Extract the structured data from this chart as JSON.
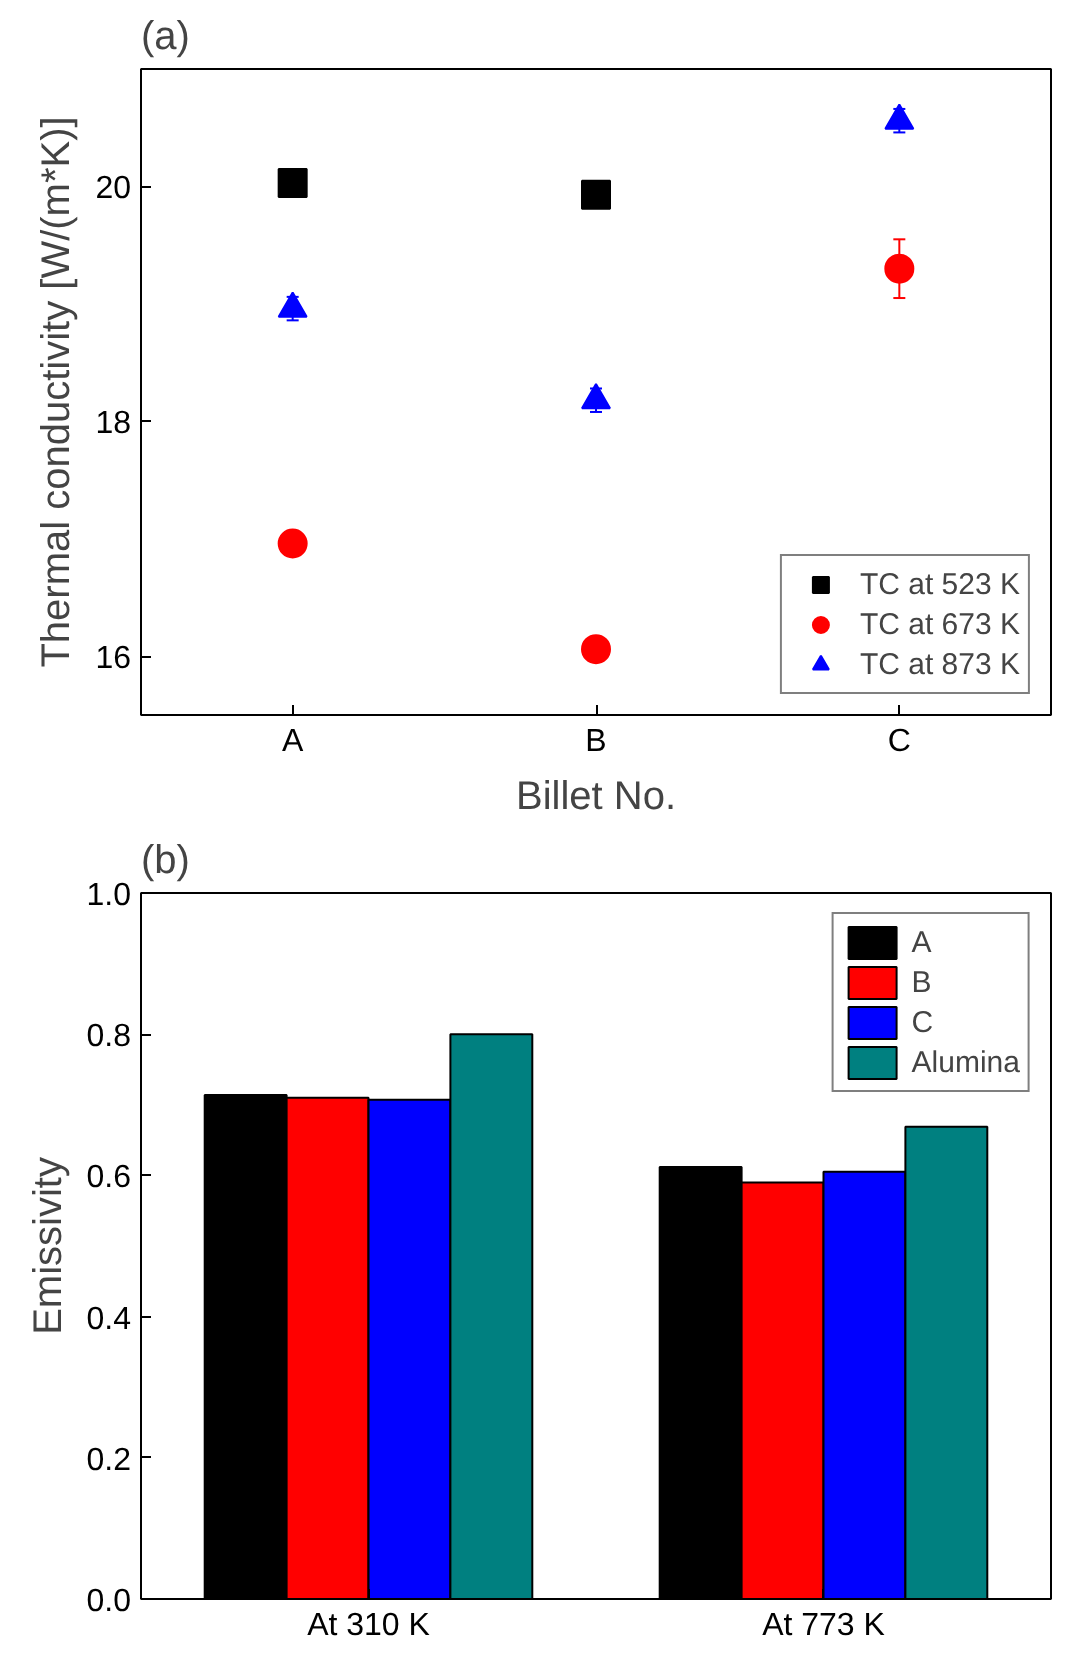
{
  "chart_data": [
    {
      "type": "scatter",
      "title": "(a)",
      "xlabel": "Billet No.",
      "ylabel": "Thermal conductivity [W/(m*K)]",
      "categories": [
        "A",
        "B",
        "C"
      ],
      "ylim": [
        15.5,
        21
      ],
      "yticks": [
        16,
        18,
        20
      ],
      "legend": "bottom right",
      "grid": false,
      "series": [
        {
          "name": "TC at 523 K",
          "color": "#000000",
          "marker": "square",
          "values": [
            20.03,
            19.93,
            null
          ]
        },
        {
          "name": "TC at 673 K",
          "color": "#ff0000",
          "marker": "circle",
          "values": [
            16.96,
            16.06,
            19.3
          ],
          "errors": [
            null,
            null,
            0.25
          ]
        },
        {
          "name": "TC at 873 K",
          "color": "#0000ff",
          "marker": "triangle",
          "values": [
            18.96,
            18.18,
            20.56
          ],
          "errors": [
            0.1,
            0.1,
            0.1
          ]
        }
      ]
    },
    {
      "type": "bar",
      "title": "(b)",
      "ylabel": "Emissivity",
      "categories": [
        "At 310 K",
        "At 773 K"
      ],
      "ylim": [
        0,
        1.0
      ],
      "yticks": [
        {
          "value": 0,
          "label": "0.0"
        },
        0.2,
        0.4,
        0.6,
        0.8,
        {
          "value": 1,
          "label": "1.0"
        }
      ],
      "legend": "top right",
      "grid": false,
      "series": [
        {
          "name": "A",
          "color": "#000000",
          "values": [
            0.714,
            0.612
          ]
        },
        {
          "name": "B",
          "color": "#ff0000",
          "values": [
            0.71,
            0.59
          ]
        },
        {
          "name": "C",
          "color": "#0000ff",
          "values": [
            0.707,
            0.605
          ]
        },
        {
          "name": "Alumina",
          "color": "#008080",
          "values": [
            0.8,
            0.669
          ]
        }
      ]
    }
  ]
}
